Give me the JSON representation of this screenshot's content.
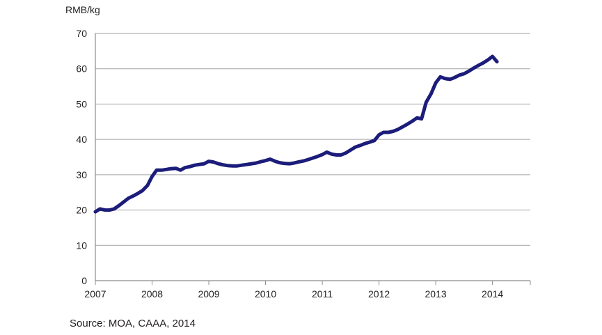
{
  "chart_data": {
    "type": "line",
    "title": "",
    "ylabel": "RMB/kg",
    "xlabel": "",
    "xlim": [
      2007,
      2014.667
    ],
    "ylim": [
      0,
      70
    ],
    "yticks": [
      0,
      10,
      20,
      30,
      40,
      50,
      60,
      70
    ],
    "xticks": [
      2007,
      2008,
      2009,
      2010,
      2011,
      2012,
      2013,
      2014
    ],
    "xtick_labels": [
      "2007",
      "2008",
      "2009",
      "2010",
      "2011",
      "2012",
      "2013",
      "2014"
    ],
    "grid": "horizontal",
    "legend": "none",
    "source": "Source: MOA, CAAA, 2014",
    "series": [
      {
        "color": "#1c1c7a",
        "points": [
          [
            2007.0,
            19.5
          ],
          [
            2007.08,
            20.3
          ],
          [
            2007.17,
            20.0
          ],
          [
            2007.25,
            20.0
          ],
          [
            2007.33,
            20.3
          ],
          [
            2007.42,
            21.3
          ],
          [
            2007.5,
            22.3
          ],
          [
            2007.58,
            23.3
          ],
          [
            2007.67,
            24.0
          ],
          [
            2007.75,
            24.7
          ],
          [
            2007.83,
            25.5
          ],
          [
            2007.92,
            27.0
          ],
          [
            2008.0,
            29.5
          ],
          [
            2008.08,
            31.3
          ],
          [
            2008.17,
            31.3
          ],
          [
            2008.25,
            31.5
          ],
          [
            2008.33,
            31.7
          ],
          [
            2008.42,
            31.8
          ],
          [
            2008.5,
            31.3
          ],
          [
            2008.58,
            32.0
          ],
          [
            2008.67,
            32.3
          ],
          [
            2008.75,
            32.7
          ],
          [
            2008.83,
            32.9
          ],
          [
            2008.92,
            33.1
          ],
          [
            2009.0,
            33.8
          ],
          [
            2009.08,
            33.6
          ],
          [
            2009.17,
            33.1
          ],
          [
            2009.25,
            32.8
          ],
          [
            2009.33,
            32.6
          ],
          [
            2009.42,
            32.5
          ],
          [
            2009.5,
            32.5
          ],
          [
            2009.58,
            32.7
          ],
          [
            2009.67,
            32.9
          ],
          [
            2009.75,
            33.1
          ],
          [
            2009.83,
            33.3
          ],
          [
            2009.92,
            33.7
          ],
          [
            2010.0,
            34.0
          ],
          [
            2010.08,
            34.4
          ],
          [
            2010.17,
            33.8
          ],
          [
            2010.25,
            33.4
          ],
          [
            2010.33,
            33.2
          ],
          [
            2010.42,
            33.1
          ],
          [
            2010.5,
            33.3
          ],
          [
            2010.58,
            33.6
          ],
          [
            2010.67,
            33.9
          ],
          [
            2010.75,
            34.3
          ],
          [
            2010.83,
            34.7
          ],
          [
            2010.92,
            35.2
          ],
          [
            2011.0,
            35.7
          ],
          [
            2011.08,
            36.4
          ],
          [
            2011.17,
            35.8
          ],
          [
            2011.25,
            35.6
          ],
          [
            2011.33,
            35.6
          ],
          [
            2011.42,
            36.2
          ],
          [
            2011.5,
            37.0
          ],
          [
            2011.58,
            37.8
          ],
          [
            2011.67,
            38.3
          ],
          [
            2011.75,
            38.8
          ],
          [
            2011.83,
            39.2
          ],
          [
            2011.92,
            39.7
          ],
          [
            2012.0,
            41.3
          ],
          [
            2012.08,
            42.0
          ],
          [
            2012.17,
            42.0
          ],
          [
            2012.25,
            42.3
          ],
          [
            2012.33,
            42.8
          ],
          [
            2012.42,
            43.6
          ],
          [
            2012.5,
            44.3
          ],
          [
            2012.58,
            45.1
          ],
          [
            2012.67,
            46.1
          ],
          [
            2012.75,
            45.8
          ],
          [
            2012.83,
            50.5
          ],
          [
            2012.92,
            53.0
          ],
          [
            2013.0,
            56.0
          ],
          [
            2013.08,
            57.7
          ],
          [
            2013.17,
            57.2
          ],
          [
            2013.25,
            57.0
          ],
          [
            2013.33,
            57.5
          ],
          [
            2013.42,
            58.2
          ],
          [
            2013.5,
            58.6
          ],
          [
            2013.58,
            59.3
          ],
          [
            2013.67,
            60.2
          ],
          [
            2013.75,
            60.9
          ],
          [
            2013.83,
            61.6
          ],
          [
            2013.92,
            62.5
          ],
          [
            2014.0,
            63.5
          ],
          [
            2014.08,
            62.0
          ]
        ]
      }
    ]
  }
}
